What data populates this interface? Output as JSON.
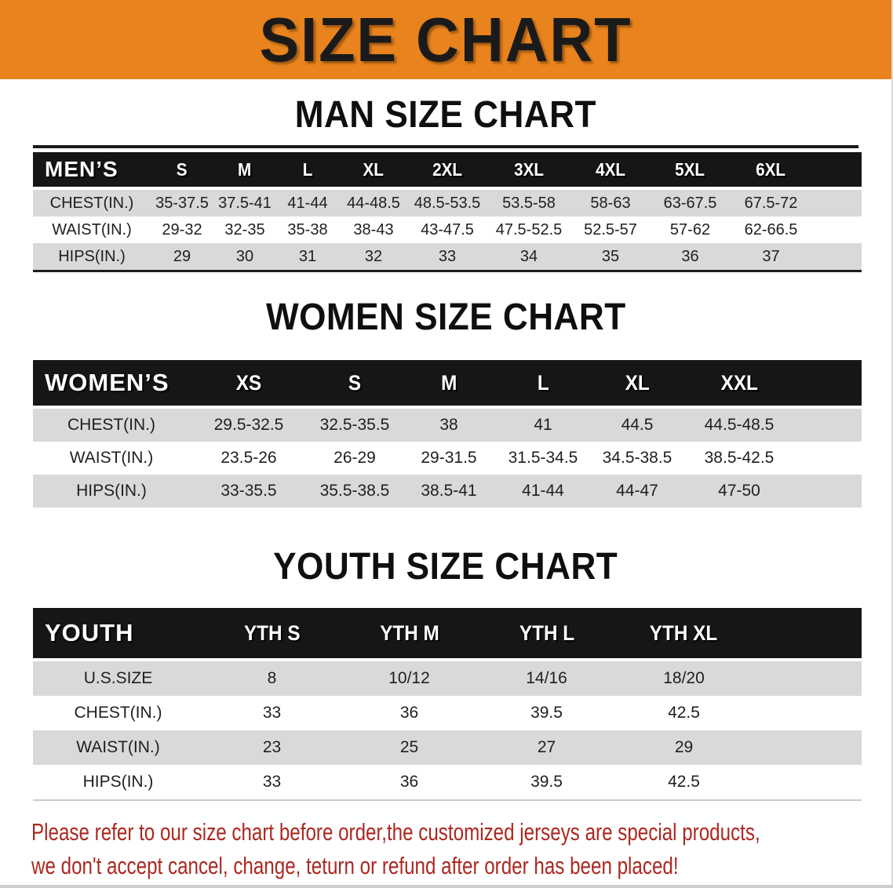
{
  "banner": {
    "title": "SIZE CHART"
  },
  "men": {
    "heading": "MAN SIZE CHART",
    "table": {
      "header_label": "MEN’S",
      "sizes": [
        "S",
        "M",
        "L",
        "XL",
        "2XL",
        "3XL",
        "4XL",
        "5XL",
        "6XL"
      ],
      "rows": [
        {
          "label": "CHEST(IN.)",
          "values": [
            "35-37.5",
            "37.5-41",
            "41-44",
            "44-48.5",
            "48.5-53.5",
            "53.5-58",
            "58-63",
            "63-67.5",
            "67.5-72"
          ]
        },
        {
          "label": "WAIST(IN.)",
          "values": [
            "29-32",
            "32-35",
            "35-38",
            "38-43",
            "43-47.5",
            "47.5-52.5",
            "52.5-57",
            "57-62",
            "62-66.5"
          ]
        },
        {
          "label": "HIPS(IN.)",
          "values": [
            "29",
            "30",
            "31",
            "32",
            "33",
            "34",
            "35",
            "36",
            "37"
          ]
        }
      ]
    }
  },
  "women": {
    "heading": "WOMEN SIZE CHART",
    "table": {
      "header_label": "WOMEN’S",
      "sizes": [
        "XS",
        "S",
        "M",
        "L",
        "XL",
        "XXL"
      ],
      "rows": [
        {
          "label": "CHEST(IN.)",
          "values": [
            "29.5-32.5",
            "32.5-35.5",
            "38",
            "41",
            "44.5",
            "44.5-48.5"
          ]
        },
        {
          "label": "WAIST(IN.)",
          "values": [
            "23.5-26",
            "26-29",
            "29-31.5",
            "31.5-34.5",
            "34.5-38.5",
            "38.5-42.5"
          ]
        },
        {
          "label": "HIPS(IN.)",
          "values": [
            "33-35.5",
            "35.5-38.5",
            "38.5-41",
            "41-44",
            "44-47",
            "47-50"
          ]
        }
      ]
    }
  },
  "youth": {
    "heading": "YOUTH SIZE CHART",
    "table": {
      "header_label": "YOUTH",
      "sizes": [
        "YTH S",
        "YTH M",
        "YTH L",
        "YTH XL"
      ],
      "rows": [
        {
          "label": "U.S.SIZE",
          "values": [
            "8",
            "10/12",
            "14/16",
            "18/20"
          ]
        },
        {
          "label": "CHEST(IN.)",
          "values": [
            "33",
            "36",
            "39.5",
            "42.5"
          ]
        },
        {
          "label": "WAIST(IN.)",
          "values": [
            "23",
            "25",
            "27",
            "29"
          ]
        },
        {
          "label": "HIPS(IN.)",
          "values": [
            "33",
            "36",
            "39.5",
            "42.5"
          ]
        }
      ]
    }
  },
  "footer": {
    "line1": "Please refer to our size chart before order,the customized jerseys are special products,",
    "line2": "we don't accept cancel, change, teturn or refund after order has been placed!"
  },
  "colors": {
    "banner_orange": "#E8831E",
    "header_bar": "#161616",
    "row_stripe": "#D9D9D9",
    "note_red": "#AC2821",
    "title_black": "#1A1A1A"
  }
}
